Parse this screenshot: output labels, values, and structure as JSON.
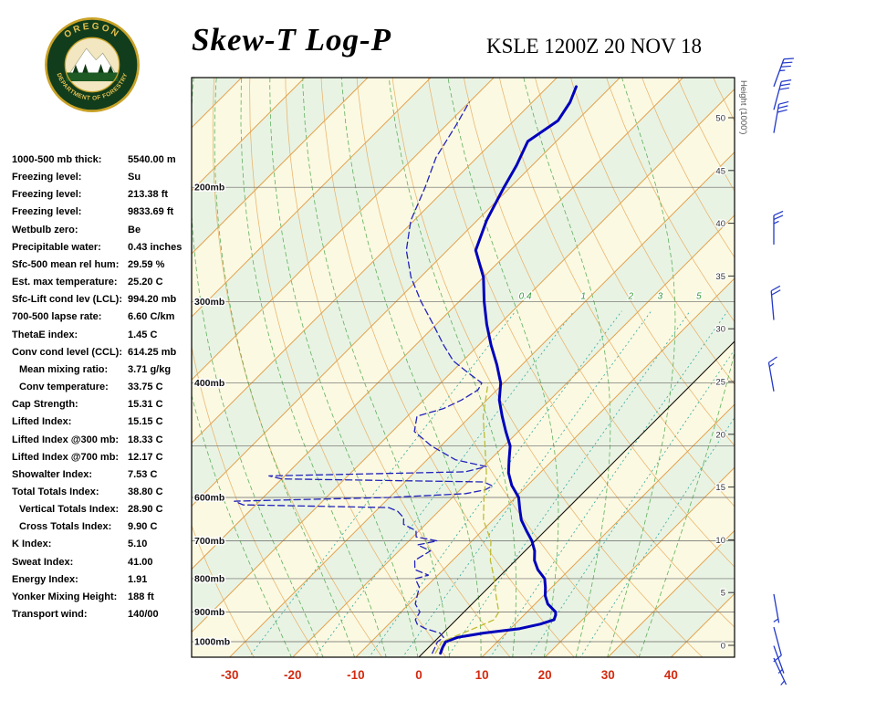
{
  "header": {
    "title": "Skew-T Log-P",
    "station": "KSLE 1200Z 20 NOV 18"
  },
  "logo": {
    "top_text": "OREGON",
    "bottom_text": "DEPARTMENT OF FORESTRY"
  },
  "indices": [
    {
      "label": "1000-500 mb thick:",
      "value": "5540.00 m"
    },
    {
      "label": "Freezing level:",
      "value": "Su"
    },
    {
      "label": "Freezing level:",
      "value": "213.38 ft"
    },
    {
      "label": "Freezing level:",
      "value": "9833.69 ft"
    },
    {
      "label": "Wetbulb zero:",
      "value": "Be"
    },
    {
      "label": "Precipitable water:",
      "value": "0.43 inches"
    },
    {
      "label": "Sfc-500 mean rel hum:",
      "value": "29.59 %"
    },
    {
      "label": "Est. max temperature:",
      "value": "25.20 C"
    },
    {
      "label": "Sfc-Lift cond lev (LCL):",
      "value": "994.20 mb"
    },
    {
      "label": "700-500 lapse rate:",
      "value": "6.60 C/km"
    },
    {
      "label": "ThetaE index:",
      "value": "1.45 C"
    },
    {
      "label": "Conv cond level (CCL):",
      "value": "614.25 mb"
    },
    {
      "label": "Mean mixing ratio:",
      "value": "3.71 g/kg",
      "indent": true
    },
    {
      "label": "Conv temperature:",
      "value": "33.75 C",
      "indent": true
    },
    {
      "label": "Cap Strength:",
      "value": "15.31 C"
    },
    {
      "label": "Lifted Index:",
      "value": "15.15 C"
    },
    {
      "label": "Lifted Index @300 mb:",
      "value": "18.33 C"
    },
    {
      "label": "Lifted Index @700 mb:",
      "value": "12.17 C"
    },
    {
      "label": "Showalter Index:",
      "value": "7.53 C"
    },
    {
      "label": "Total Totals Index:",
      "value": "38.80 C"
    },
    {
      "label": "Vertical Totals Index:",
      "value": "28.90 C",
      "indent": true
    },
    {
      "label": "Cross Totals Index:",
      "value": "9.90 C",
      "indent": true
    },
    {
      "label": "K Index:",
      "value": "5.10"
    },
    {
      "label": "Sweat Index:",
      "value": "41.00"
    },
    {
      "label": "Energy Index:",
      "value": "1.91"
    },
    {
      "label": "Yonker Mixing Height:",
      "value": "188 ft"
    },
    {
      "label": "Transport wind:",
      "value": "140/00"
    }
  ],
  "chart_data": {
    "type": "line",
    "subtype": "skew-t-log-p-sounding",
    "title": "Skew-T Log-P",
    "station_time": "KSLE 1200Z 20 NOV 18",
    "x_axis": {
      "unit": "C",
      "ticks": [
        -30,
        -20,
        -10,
        0,
        10,
        20,
        30,
        40
      ],
      "color": "#d32a10"
    },
    "pressure_axis": {
      "labels": [
        "200mb",
        "300mb",
        "400mb",
        "600mb",
        "700mb",
        "800mb",
        "900mb",
        "1000mb"
      ],
      "gridlines_mb": [
        200,
        300,
        400,
        500,
        600,
        700,
        800,
        900,
        1000
      ],
      "range_mb": [
        135,
        1060
      ]
    },
    "height_axis": {
      "label": "Height (1000')",
      "ticks": [
        0,
        5,
        10,
        15,
        20,
        25,
        30,
        35,
        40,
        45,
        50
      ]
    },
    "background_bands": {
      "colors": [
        "#fbf9e2",
        "#e9f3e3"
      ],
      "step_c": 10
    },
    "grid_colors": {
      "isotherm": "#e2a14e",
      "dry_adiabat": "#e8ac5e",
      "moist_adiabat": "#4fa84f",
      "mixing_ratio": "#2fa8a0",
      "mixing_label": "#3a9a3a",
      "pressure_line": "#666666",
      "zero_isotherm": "#111111",
      "wind_barb": "#2238c8",
      "height_text": "#333333"
    },
    "dry_adiabats": {
      "theta_min": -40,
      "theta_max": 200,
      "step": 10
    },
    "moist_adiabat_starts": [
      -20,
      -15,
      -10,
      -5,
      0,
      5,
      10,
      15,
      20,
      25,
      30,
      35
    ],
    "mixing_ratio_lines": [
      0.4,
      1,
      2,
      3,
      5,
      8,
      12,
      20
    ],
    "mixing_ratio_labels": [
      0.4,
      1,
      2,
      3,
      5
    ],
    "series": [
      {
        "name": "temperature",
        "color": "#0000bb",
        "style": "solid",
        "points": [
          [
            1042,
            2.8
          ],
          [
            1020,
            2.2
          ],
          [
            1000,
            1.8
          ],
          [
            985,
            3.0
          ],
          [
            970,
            6.5
          ],
          [
            955,
            11.5
          ],
          [
            940,
            14.0
          ],
          [
            925,
            15.5
          ],
          [
            910,
            15.0
          ],
          [
            900,
            14.5
          ],
          [
            875,
            12.0
          ],
          [
            850,
            10.3
          ],
          [
            825,
            9.0
          ],
          [
            800,
            7.5
          ],
          [
            775,
            5.0
          ],
          [
            750,
            3.0
          ],
          [
            725,
            1.5
          ],
          [
            700,
            -0.5
          ],
          [
            675,
            -3.0
          ],
          [
            650,
            -5.5
          ],
          [
            625,
            -7.5
          ],
          [
            600,
            -9.5
          ],
          [
            575,
            -12.5
          ],
          [
            550,
            -15.0
          ],
          [
            525,
            -17.0
          ],
          [
            500,
            -19.0
          ],
          [
            475,
            -22.0
          ],
          [
            450,
            -25.0
          ],
          [
            425,
            -28.0
          ],
          [
            400,
            -30.5
          ],
          [
            375,
            -34.0
          ],
          [
            350,
            -38.0
          ],
          [
            325,
            -42.0
          ],
          [
            300,
            -46.0
          ],
          [
            275,
            -50.0
          ],
          [
            250,
            -55.5
          ],
          [
            225,
            -58.5
          ],
          [
            200,
            -61.0
          ],
          [
            185,
            -62.5
          ],
          [
            170,
            -64.5
          ],
          [
            158,
            -63.0
          ],
          [
            148,
            -64.0
          ],
          [
            140,
            -65.5
          ]
        ]
      },
      {
        "name": "dewpoint",
        "color": "#2222bb",
        "style": "dashed",
        "points": [
          [
            1042,
            1.5
          ],
          [
            1020,
            1.0
          ],
          [
            1000,
            0.5
          ],
          [
            985,
            0.8
          ],
          [
            970,
            -0.5
          ],
          [
            955,
            -3.5
          ],
          [
            940,
            -5.5
          ],
          [
            925,
            -6.5
          ],
          [
            900,
            -7.0
          ],
          [
            875,
            -9.0
          ],
          [
            850,
            -10.0
          ],
          [
            825,
            -11.0
          ],
          [
            800,
            -13.0
          ],
          [
            790,
            -11.5
          ],
          [
            775,
            -14.5
          ],
          [
            750,
            -16.0
          ],
          [
            725,
            -15.0
          ],
          [
            710,
            -18.0
          ],
          [
            700,
            -15.5
          ],
          [
            690,
            -19.5
          ],
          [
            675,
            -20.5
          ],
          [
            660,
            -23.5
          ],
          [
            645,
            -24.5
          ],
          [
            630,
            -26.5
          ],
          [
            622,
            -28.5
          ],
          [
            616,
            -52.0
          ],
          [
            608,
            -54.0
          ],
          [
            600,
            -30.0
          ],
          [
            592,
            -18.5
          ],
          [
            584,
            -16.0
          ],
          [
            576,
            -15.5
          ],
          [
            568,
            -17.5
          ],
          [
            562,
            -50.0
          ],
          [
            556,
            -52.5
          ],
          [
            548,
            -22.0
          ],
          [
            538,
            -19.5
          ],
          [
            525,
            -25.5
          ],
          [
            500,
            -31.5
          ],
          [
            475,
            -36.5
          ],
          [
            450,
            -38.5
          ],
          [
            438,
            -35.5
          ],
          [
            425,
            -34.0
          ],
          [
            410,
            -33.0
          ],
          [
            400,
            -33.5
          ],
          [
            385,
            -37.5
          ],
          [
            370,
            -41.5
          ],
          [
            350,
            -45.5
          ],
          [
            325,
            -50.5
          ],
          [
            300,
            -56.0
          ],
          [
            275,
            -61.5
          ],
          [
            250,
            -66.5
          ],
          [
            225,
            -70.5
          ],
          [
            200,
            -73.5
          ],
          [
            180,
            -76.5
          ],
          [
            160,
            -78.5
          ],
          [
            148,
            -80.0
          ]
        ]
      },
      {
        "name": "wetbulb",
        "color": "#bcbc34",
        "style": "dashed",
        "points": [
          [
            1042,
            2.0
          ],
          [
            1000,
            1.2
          ],
          [
            950,
            4.5
          ],
          [
            925,
            6.0
          ],
          [
            900,
            5.5
          ],
          [
            850,
            2.5
          ],
          [
            800,
            -0.5
          ],
          [
            750,
            -4.0
          ],
          [
            700,
            -7.0
          ],
          [
            650,
            -11.5
          ],
          [
            600,
            -15.0
          ],
          [
            550,
            -18.5
          ],
          [
            500,
            -23.0
          ],
          [
            450,
            -28.0
          ],
          [
            400,
            -32.5
          ]
        ]
      }
    ],
    "winds_p_dir_spd": [
      [
        140,
        20,
        35
      ],
      [
        152,
        15,
        30
      ],
      [
        165,
        10,
        30
      ],
      [
        245,
        0,
        25
      ],
      [
        320,
        355,
        20
      ],
      [
        412,
        350,
        15
      ],
      [
        845,
        170,
        5
      ],
      [
        950,
        165,
        10
      ],
      [
        1015,
        160,
        5
      ],
      [
        1060,
        155,
        3
      ]
    ]
  }
}
